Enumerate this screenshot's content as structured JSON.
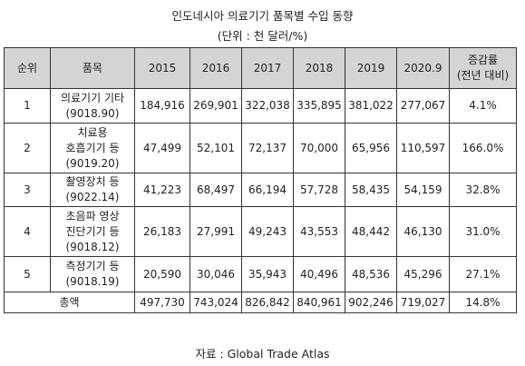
{
  "title": "인도네시아 의료기기 품목별 수입 동향",
  "unit": "(단위 : 천 달러/%)",
  "headers": {
    "rank": "순위",
    "item": "품목",
    "y2015": "2015",
    "y2016": "2016",
    "y2017": "2017",
    "y2018": "2018",
    "y2019": "2019",
    "y2020": "2020.9",
    "growth_line1": "증감률",
    "growth_line2": "(전년 대비)"
  },
  "rows": [
    {
      "rank": "1",
      "item": [
        "의료기기 기타",
        "(9018.90)"
      ],
      "v2015": "184,916",
      "v2016": "269,901",
      "v2017": "322,038",
      "v2018": "335,895",
      "v2019": "381,022",
      "v2020": "277,067",
      "growth": "4.1%"
    },
    {
      "rank": "2",
      "item": [
        "치료용",
        "호흡기기 등",
        "(9019.20)"
      ],
      "v2015": "47,499",
      "v2016": "52,101",
      "v2017": "72,137",
      "v2018": "70,000",
      "v2019": "65,956",
      "v2020": "110,597",
      "growth": "166.0%"
    },
    {
      "rank": "3",
      "item": [
        "촬영장치 등",
        "(9022.14)"
      ],
      "v2015": "41,223",
      "v2016": "68,497",
      "v2017": "66,194",
      "v2018": "57,728",
      "v2019": "58,435",
      "v2020": "54,159",
      "growth": "32.8%"
    },
    {
      "rank": "4",
      "item": [
        "초음파 영상",
        "진단기기 등",
        "(9018.12)"
      ],
      "v2015": "26,183",
      "v2016": "27,991",
      "v2017": "49,243",
      "v2018": "43,553",
      "v2019": "48,442",
      "v2020": "46,130",
      "growth": "31.0%"
    },
    {
      "rank": "5",
      "item": [
        "측정기기 등",
        "(9018.19)"
      ],
      "v2015": "20,590",
      "v2016": "30,046",
      "v2017": "35,943",
      "v2018": "40,496",
      "v2019": "48,536",
      "v2020": "45,296",
      "growth": "27.1%"
    }
  ],
  "total": {
    "label": "총액",
    "v2015": "497,730",
    "v2016": "743,024",
    "v2017": "826,842",
    "v2018": "840,961",
    "v2019": "902,246",
    "v2020": "719,027",
    "growth": "14.8%"
  },
  "source": "자료 : Global Trade Atlas"
}
